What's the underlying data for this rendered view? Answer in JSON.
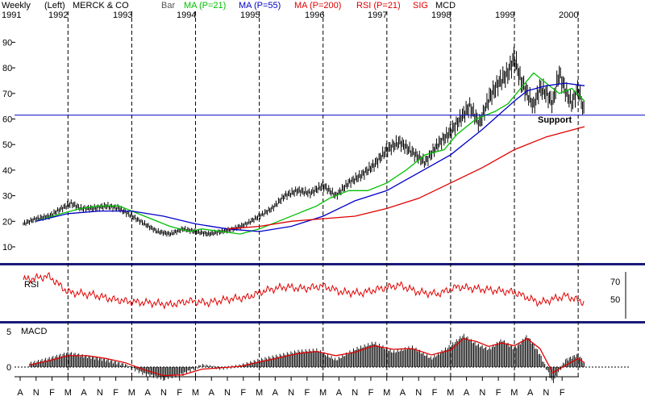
{
  "header": {
    "periodicity": "Weekly",
    "scale_side": "(Left)",
    "symbol_name": "MERCK & CO",
    "style": "Bar",
    "indicators": [
      {
        "label": "MA (P=21)",
        "color": "#00c000"
      },
      {
        "label": "MA (P=55)",
        "color": "#0000c8"
      },
      {
        "label": "MA (P=200)",
        "color": "#e00000"
      },
      {
        "label": "RSI (P=21)",
        "color": "#e00000"
      },
      {
        "label": "SIG",
        "color": "#e00000"
      },
      {
        "label": "MCD",
        "color": "#000000"
      }
    ]
  },
  "chart_data": [
    {
      "type": "line",
      "panel": "price",
      "years": [
        "1991",
        "1992",
        "1993",
        "1994",
        "1995",
        "1996",
        "1997",
        "1998",
        "1999",
        "2000"
      ],
      "x_axis_months": [
        "A",
        "N",
        "F",
        "M",
        "A",
        "N",
        "F",
        "M",
        "A",
        "N",
        "F",
        "M",
        "A",
        "N",
        "F",
        "M",
        "A",
        "N",
        "F",
        "M",
        "A",
        "N",
        "F",
        "M",
        "A",
        "N",
        "F",
        "M",
        "A",
        "N",
        "F",
        "M",
        "A",
        "N",
        "F"
      ],
      "ylim": [
        5,
        95
      ],
      "y_ticks": [
        10,
        20,
        30,
        40,
        50,
        60,
        70,
        80,
        90
      ],
      "support": {
        "label": "Support",
        "value": 61.5
      },
      "series": [
        {
          "name": "MA (P=21)",
          "color": "#00c000",
          "x": [
            1991.5,
            1991.9,
            1992.2,
            1992.5,
            1992.8,
            1993.0,
            1993.3,
            1993.6,
            1993.9,
            1994.1,
            1994.4,
            1994.7,
            1995.0,
            1995.3,
            1995.6,
            1995.9,
            1996.1,
            1996.4,
            1996.7,
            1997.0,
            1997.3,
            1997.6,
            1997.9,
            1998.1,
            1998.4,
            1998.7,
            1998.9,
            1999.1,
            1999.3,
            1999.5,
            1999.7,
            1999.9,
            2000.1
          ],
          "y": [
            20,
            23,
            25,
            26,
            26,
            24,
            21,
            18,
            16,
            17,
            16,
            15,
            17,
            20,
            23,
            26,
            29,
            32,
            32,
            35,
            40,
            46,
            48,
            54,
            60,
            63,
            66,
            72,
            78,
            74,
            70,
            72,
            67
          ]
        },
        {
          "name": "MA (P=55)",
          "color": "#0000c8",
          "x": [
            1991.5,
            1992.0,
            1992.5,
            1993.0,
            1993.5,
            1994.0,
            1994.5,
            1995.0,
            1995.5,
            1996.0,
            1996.5,
            1997.0,
            1997.5,
            1998.0,
            1998.5,
            1999.0,
            1999.2,
            1999.5,
            1999.8,
            2000.1
          ],
          "y": [
            20,
            23,
            24,
            24,
            22,
            19,
            17,
            16,
            18,
            22,
            28,
            32,
            39,
            46,
            56,
            67,
            71,
            73,
            74,
            73
          ]
        },
        {
          "name": "MA (P=200)",
          "color": "#e00000",
          "x": [
            1994.5,
            1995.0,
            1995.5,
            1996.0,
            1996.5,
            1997.0,
            1997.5,
            1998.0,
            1998.5,
            1999.0,
            1999.5,
            2000.1
          ],
          "y": [
            17,
            18,
            20,
            21,
            22,
            25,
            29,
            35,
            41,
            48,
            53,
            57
          ]
        }
      ],
      "price_bars": {
        "name": "MERCK & CO",
        "color": "#000000",
        "x": [
          1991.3,
          1991.5,
          1991.7,
          1991.9,
          1992.05,
          1992.2,
          1992.4,
          1992.6,
          1992.8,
          1993.0,
          1993.2,
          1993.4,
          1993.6,
          1993.8,
          1994.0,
          1994.2,
          1994.4,
          1994.6,
          1994.8,
          1995.0,
          1995.2,
          1995.4,
          1995.6,
          1995.8,
          1996.0,
          1996.2,
          1996.4,
          1996.6,
          1996.8,
          1997.0,
          1997.2,
          1997.4,
          1997.6,
          1997.8,
          1998.0,
          1998.15,
          1998.3,
          1998.45,
          1998.6,
          1998.75,
          1998.9,
          1999.0,
          1999.1,
          1999.2,
          1999.3,
          1999.4,
          1999.5,
          1999.6,
          1999.7,
          1999.8,
          1999.9,
          2000.0,
          2000.1
        ],
        "y": [
          19,
          21,
          22,
          25,
          27,
          25,
          25,
          26,
          25,
          22,
          19,
          16,
          15,
          17,
          16,
          15,
          16,
          17,
          19,
          22,
          25,
          30,
          32,
          31,
          34,
          30,
          35,
          38,
          42,
          48,
          51,
          47,
          43,
          50,
          55,
          60,
          65,
          58,
          68,
          74,
          78,
          84,
          75,
          70,
          65,
          72,
          70,
          66,
          78,
          71,
          66,
          72,
          62
        ]
      }
    },
    {
      "type": "line",
      "panel": "rsi",
      "title": "RSI",
      "y_ticks": [
        50,
        70
      ],
      "series": [
        {
          "name": "RSI (P=21)",
          "color": "#e00000",
          "x": [
            1991.3,
            1991.7,
            1992.0,
            1992.4,
            1992.7,
            1993.0,
            1993.3,
            1993.6,
            1993.9,
            1994.2,
            1994.5,
            1994.8,
            1995.1,
            1995.4,
            1995.7,
            1996.0,
            1996.3,
            1996.6,
            1996.9,
            1997.2,
            1997.5,
            1997.8,
            1998.1,
            1998.4,
            1998.7,
            1999.0,
            1999.2,
            1999.4,
            1999.6,
            1999.8,
            2000.0,
            2000.1
          ],
          "y": [
            72,
            76,
            58,
            55,
            50,
            47,
            46,
            44,
            48,
            46,
            50,
            52,
            60,
            64,
            62,
            65,
            58,
            57,
            62,
            66,
            58,
            56,
            64,
            62,
            60,
            58,
            52,
            46,
            50,
            54,
            49,
            46
          ]
        }
      ]
    },
    {
      "type": "bar",
      "panel": "macd",
      "title": "MACD",
      "y_ticks": [
        0,
        5
      ],
      "series": [
        {
          "name": "MCD",
          "color": "#000000",
          "x": [
            1991.4,
            1991.7,
            1992.0,
            1992.3,
            1992.6,
            1992.9,
            1993.2,
            1993.5,
            1993.8,
            1994.1,
            1994.4,
            1994.7,
            1995.0,
            1995.3,
            1995.6,
            1995.9,
            1996.2,
            1996.5,
            1996.8,
            1997.1,
            1997.4,
            1997.7,
            1998.0,
            1998.2,
            1998.4,
            1998.6,
            1998.8,
            1999.0,
            1999.2,
            1999.4,
            1999.6,
            1999.8,
            2000.0,
            2000.1
          ],
          "y": [
            0.5,
            1.2,
            2,
            1.5,
            1,
            0.3,
            -1,
            -1.6,
            -1,
            0.3,
            -0.2,
            0.2,
            1,
            1.6,
            2.2,
            2.4,
            1,
            2.5,
            3.4,
            2.1,
            2.8,
            1.2,
            3,
            4.5,
            3.2,
            2.5,
            3.8,
            2.6,
            4.4,
            1.8,
            -2.2,
            1,
            1.8,
            0.5
          ]
        },
        {
          "name": "SIG",
          "color": "#e00000",
          "x": [
            1991.4,
            1991.7,
            1992.0,
            1992.3,
            1992.6,
            1992.9,
            1993.2,
            1993.5,
            1993.8,
            1994.1,
            1994.4,
            1994.7,
            1995.0,
            1995.3,
            1995.6,
            1995.9,
            1996.2,
            1996.5,
            1996.8,
            1997.1,
            1997.4,
            1997.7,
            1998.0,
            1998.2,
            1998.4,
            1998.6,
            1998.8,
            1999.0,
            1999.2,
            1999.4,
            1999.6,
            1999.8,
            2000.0,
            2000.1
          ],
          "y": [
            0.3,
            0.9,
            1.6,
            1.6,
            1.2,
            0.6,
            -0.4,
            -1.2,
            -1.1,
            -0.3,
            -0.1,
            0.1,
            0.7,
            1.3,
            1.9,
            2.2,
            1.6,
            2.1,
            3,
            2.5,
            2.6,
            1.7,
            2.4,
            4,
            3.6,
            2.9,
            3.4,
            3,
            4,
            2.6,
            -0.8,
            0.2,
            1.2,
            0.6
          ]
        }
      ]
    }
  ]
}
